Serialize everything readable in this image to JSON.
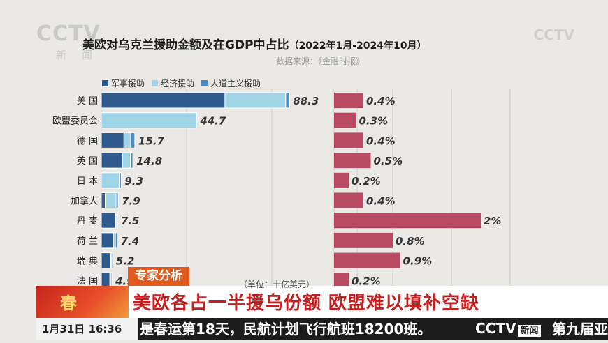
{
  "broadcast": {
    "logo": "CCTV",
    "logo_sub": "新闻",
    "watermark": "CCTV"
  },
  "chart_data": {
    "type": "bar",
    "title": "美欧对乌克兰援助金额及在GDP中占比",
    "title_range": "（2022年1月-2024年10月）",
    "source": "数据来源：《金融时报》",
    "unit": "（单位：十亿美元）",
    "categories": [
      "美 国",
      "欧盟委员会",
      "德 国",
      "英 国",
      "日 本",
      "加拿大",
      "丹 麦",
      "荷 兰",
      "瑞 典",
      "法 国"
    ],
    "series": [
      {
        "name": "军事援助",
        "color": "#2f5a8e",
        "values": [
          58.0,
          0.0,
          10.6,
          10.0,
          0.0,
          1.8,
          6.6,
          5.6,
          4.4,
          4.0
        ]
      },
      {
        "name": "经济援助",
        "color": "#9fd3e6",
        "values": [
          28.5,
          44.7,
          3.2,
          3.6,
          8.4,
          5.1,
          0.4,
          1.0,
          0.3,
          0.4
        ]
      },
      {
        "name": "人道主义援助",
        "color": "#4a8cc6",
        "values": [
          1.8,
          0.0,
          1.9,
          1.2,
          0.9,
          1.0,
          0.5,
          0.8,
          0.5,
          0.5
        ]
      }
    ],
    "totals": [
      "88.3",
      "44.7",
      "15.7",
      "14.8",
      "9.3",
      "7.9",
      "7.5",
      "7.4",
      "5.2",
      "4.9"
    ],
    "gdp_share": {
      "values": [
        0.4,
        0.3,
        0.4,
        0.5,
        0.2,
        0.4,
        2.0,
        0.8,
        0.9,
        0.2
      ],
      "labels": [
        "0.4%",
        "0.3%",
        "0.4%",
        "0.5%",
        "0.2%",
        "0.4%",
        "2%",
        "0.8%",
        "0.9%",
        "0.2%"
      ],
      "color": "#b84a62",
      "xlim": [
        0,
        2.4
      ]
    },
    "xlim": [
      0,
      100
    ],
    "grid": true
  },
  "overlay": {
    "expert_tag": "专家分析",
    "headline": "美欧各占一半援乌份额 欧盟难以填补空缺",
    "date": "1月31日",
    "time": "16:36",
    "ticker": "是春运第18天，民航计划飞行航班18200班。",
    "ticker_logo": "CCTV",
    "ticker_news": "新闻",
    "ticker_next": "第九届亚"
  }
}
